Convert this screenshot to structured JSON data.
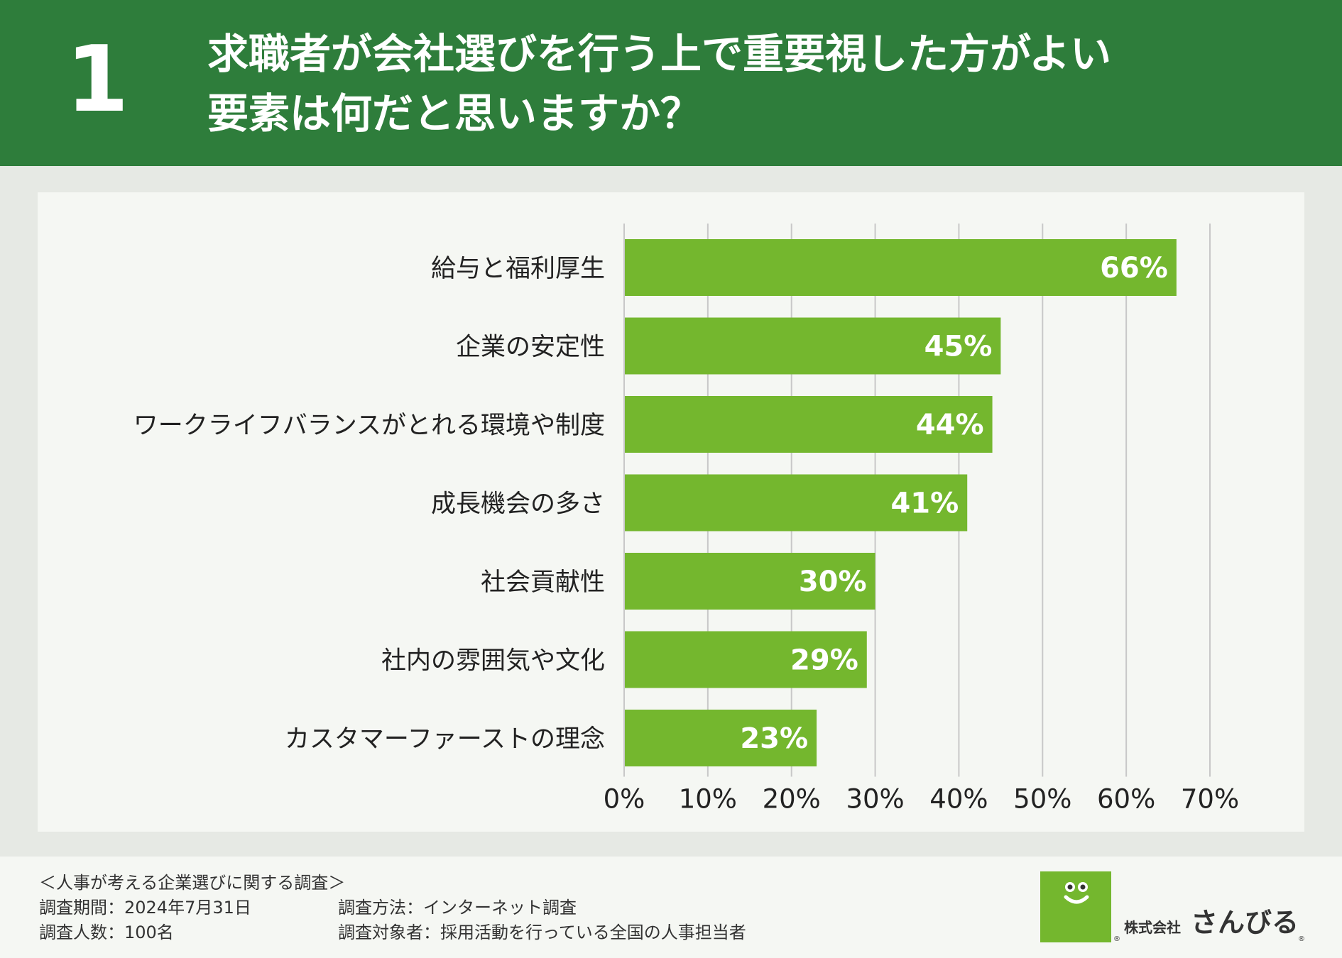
{
  "header": {
    "number": "1",
    "title_line1": "求職者が会社選びを行う上で重要視した方がよい",
    "title_line2": "要素は何だと思いますか？"
  },
  "colors": {
    "header_bg": "#2e7d3b",
    "bar": "#74b72e",
    "grid": "#c8c8c8",
    "label_text": "#222222",
    "value_text": "#ffffff"
  },
  "chart_data": {
    "type": "bar",
    "orientation": "horizontal",
    "categories": [
      "給与と福利厚生",
      "企業の安定性",
      "ワークライフバランスがとれる環境や制度",
      "成長機会の多さ",
      "社会貢献性",
      "社内の雰囲気や文化",
      "カスタマーファーストの理念"
    ],
    "values": [
      66,
      45,
      44,
      41,
      30,
      29,
      23
    ],
    "value_labels": [
      "66%",
      "45%",
      "44%",
      "41%",
      "30%",
      "29%",
      "23%"
    ],
    "xlim": [
      0,
      70
    ],
    "xticks": [
      0,
      10,
      20,
      30,
      40,
      50,
      60,
      70
    ],
    "xtick_labels": [
      "0%",
      "10%",
      "20%",
      "30%",
      "40%",
      "50%",
      "60%",
      "70%"
    ],
    "grid": true
  },
  "footer": {
    "survey_name": "＜人事が考える企業選びに関する調査＞",
    "period": "調査期間：2024年7月31日",
    "method": "調査方法：インターネット調査",
    "count": "調査人数：100名",
    "target": "調査対象者：採用活動を行っている全国の人事担当者"
  },
  "logo": {
    "kabushiki": "株式会社",
    "name": "さんびる",
    "reg_mark": "®"
  }
}
